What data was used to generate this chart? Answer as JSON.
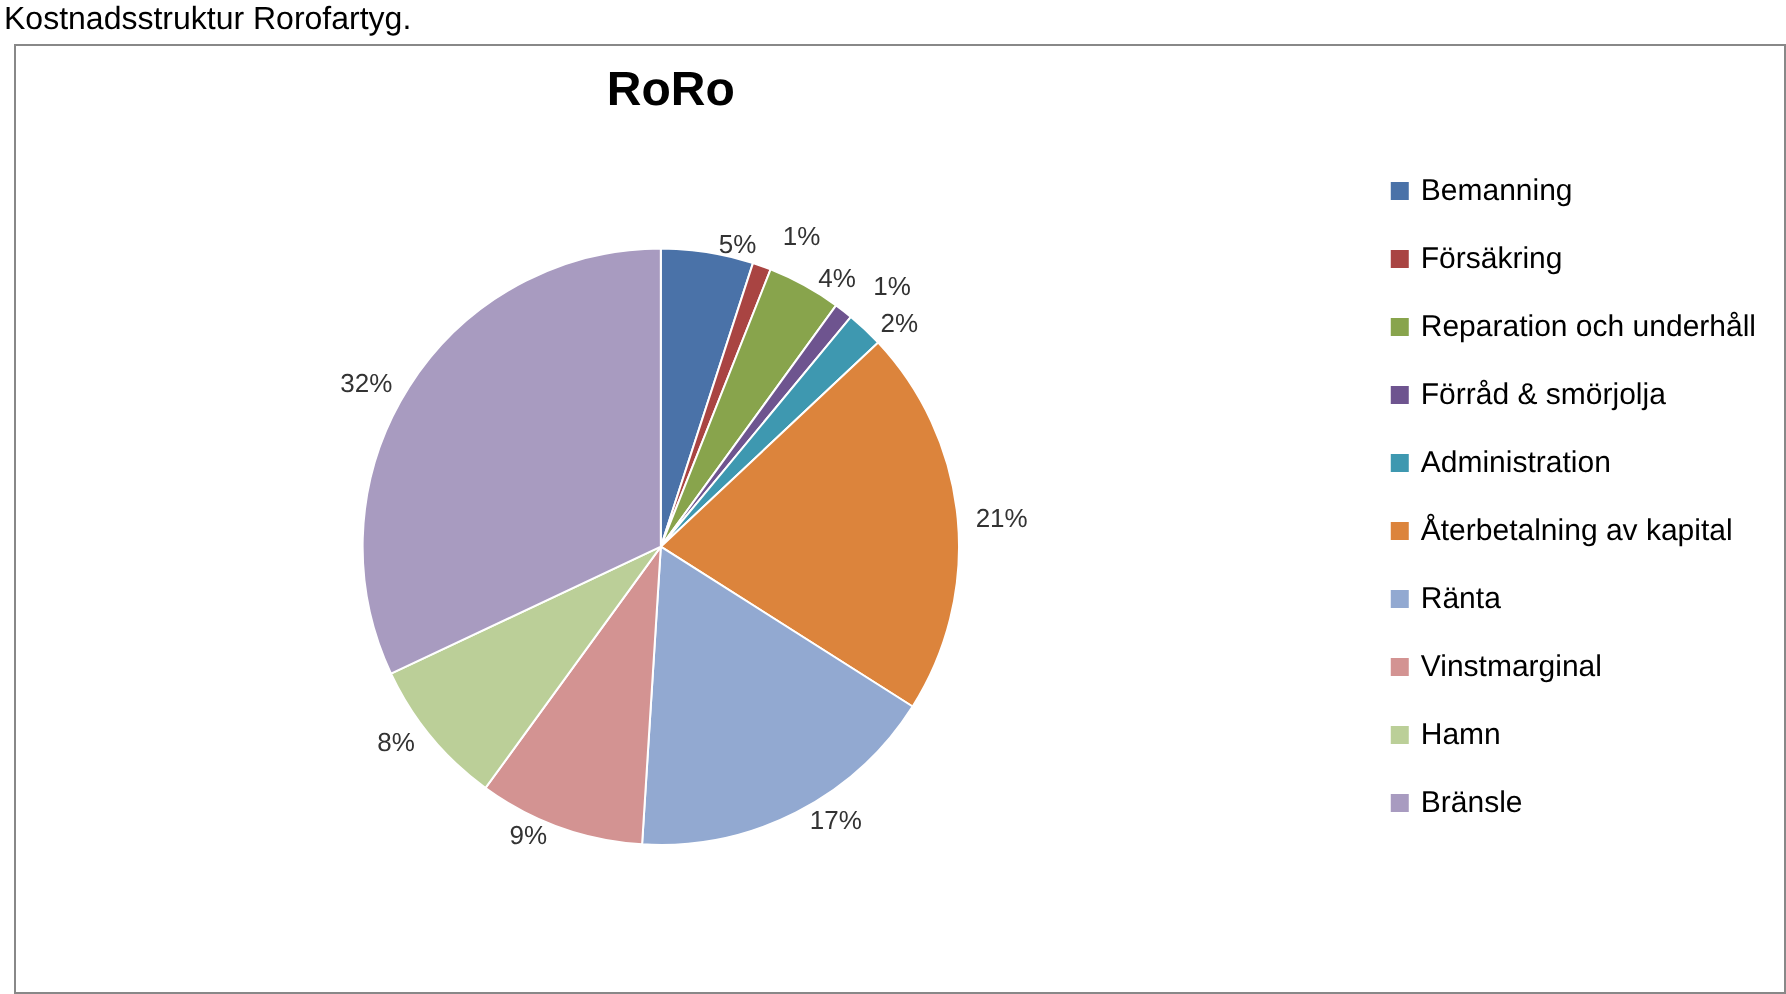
{
  "chart_data": {
    "type": "pie",
    "title": "RoRo",
    "annotations": [
      "Kostnadsstruktur Rorofartyg."
    ],
    "categories": [
      "Bemanning",
      "Försäkring",
      "Reparation och underhåll",
      "Förråd & smörjolja",
      "Administration",
      "Återbetalning av kapital",
      "Ränta",
      "Vinstmarginal",
      "Hamn",
      "Bränsle"
    ],
    "values": [
      5,
      1,
      4,
      1,
      2,
      21,
      17,
      9,
      8,
      32
    ],
    "colors": [
      "#4a72a8",
      "#a94442",
      "#88a44c",
      "#6e548f",
      "#3e98b0",
      "#dc843c",
      "#92a9d1",
      "#d39392",
      "#bbcf98",
      "#a89bc0"
    ],
    "value_labels": [
      "5%",
      "1%",
      "4%",
      "1%",
      "2%",
      "21%",
      "17%",
      "9%",
      "8%",
      "32%"
    ],
    "legend": "right"
  }
}
